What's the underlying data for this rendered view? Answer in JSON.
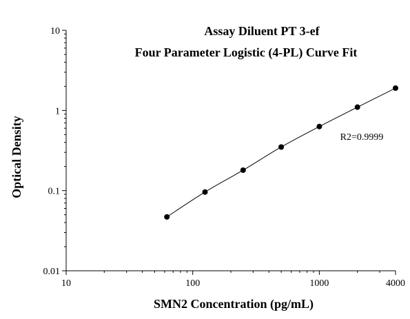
{
  "chart_data": {
    "type": "scatter",
    "title": "Assay Diluent PT 3-ef",
    "subtitle": "Four Parameter Logistic (4-PL) Curve Fit",
    "xlabel": "SMN2 Concentration (pg/mL)",
    "ylabel": "Optical Density",
    "x_scale": "log",
    "y_scale": "log",
    "xlim": [
      10,
      4000
    ],
    "ylim": [
      0.01,
      10
    ],
    "x_ticks": [
      {
        "value": 10,
        "label": "10"
      },
      {
        "value": 100,
        "label": "100"
      },
      {
        "value": 1000,
        "label": "1000"
      },
      {
        "value": 4000,
        "label": "4000"
      }
    ],
    "y_ticks": [
      {
        "value": 0.01,
        "label": "0.01"
      },
      {
        "value": 0.1,
        "label": "0.1"
      },
      {
        "value": 1,
        "label": "1"
      },
      {
        "value": 10,
        "label": "10"
      }
    ],
    "annotation": "R2=0.9999",
    "grid": false,
    "series": [
      {
        "points": [
          {
            "x": 62.5,
            "y": 0.047
          },
          {
            "x": 125,
            "y": 0.096
          },
          {
            "x": 250,
            "y": 0.18
          },
          {
            "x": 500,
            "y": 0.35
          },
          {
            "x": 1000,
            "y": 0.63
          },
          {
            "x": 2000,
            "y": 1.1
          },
          {
            "x": 4000,
            "y": 1.9
          }
        ],
        "color": "#000000",
        "marker": "circle",
        "fit": "4-PL"
      }
    ]
  }
}
